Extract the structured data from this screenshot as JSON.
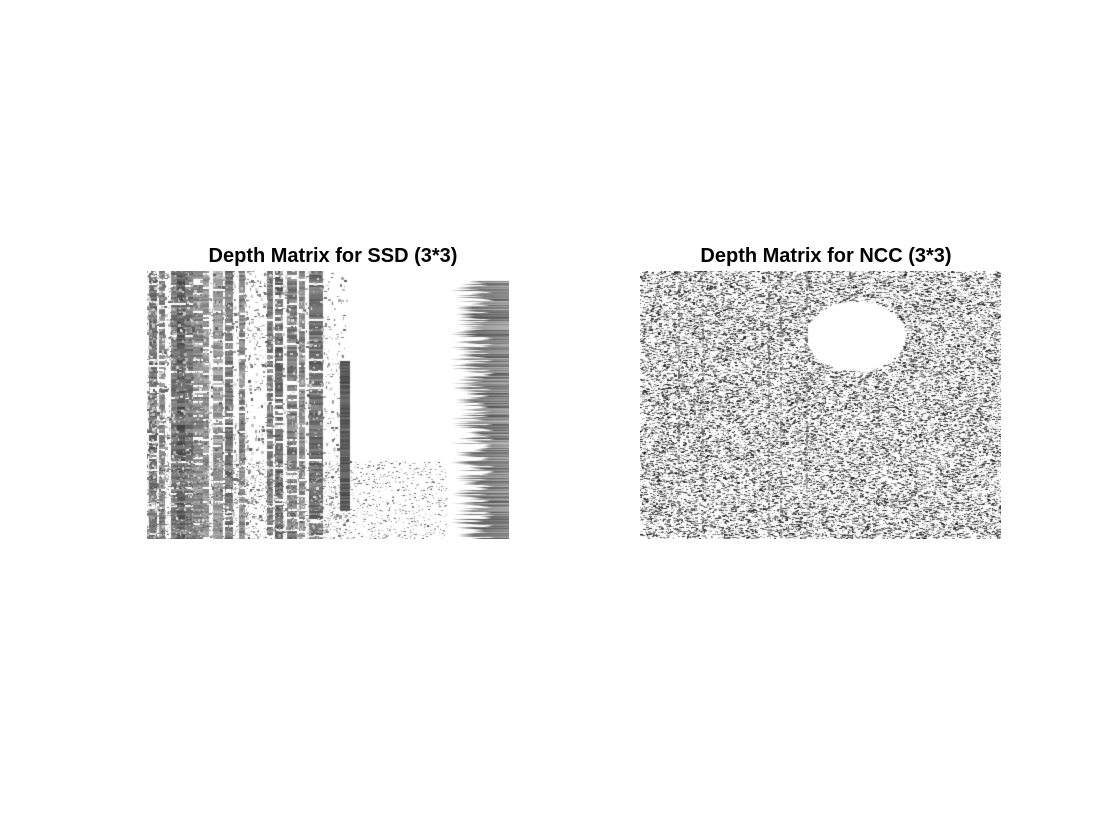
{
  "figure": {
    "panels": [
      {
        "id": "ssd",
        "title": "Depth Matrix for SSD (3*3)",
        "colormap": "grayscale",
        "content": "dense depth map"
      },
      {
        "id": "ncc",
        "title": "Depth Matrix for NCC (3*3)",
        "colormap": "grayscale",
        "content": "noisy depth map"
      }
    ]
  }
}
